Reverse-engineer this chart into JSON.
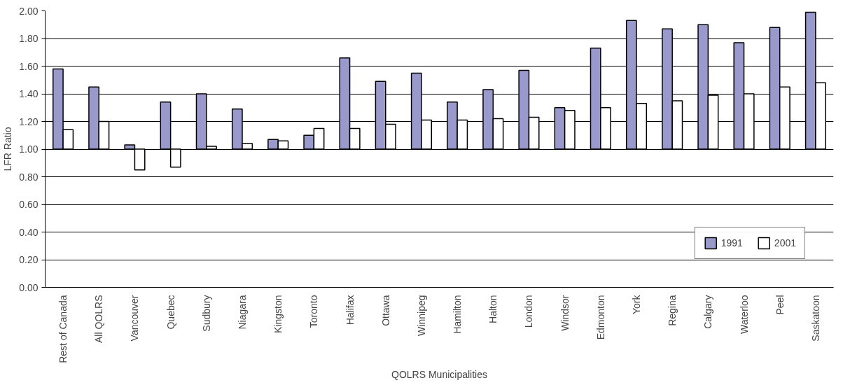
{
  "chart_data": {
    "type": "bar",
    "xlabel": "QOLRS Municipalities",
    "ylabel": "LFR Ratio",
    "categories": [
      "Rest of Canada",
      "All QOLRS",
      "Vancouver",
      "Quebec",
      "Sudbury",
      "Niagara",
      "Kingston",
      "Toronto",
      "Halifax",
      "Ottawa",
      "Winnipeg",
      "Hamilton",
      "Halton",
      "London",
      "Windsor",
      "Edmonton",
      "York",
      "Regina",
      "Calgary",
      "Waterloo",
      "Peel",
      "Saskatoon"
    ],
    "series": [
      {
        "name": "1991",
        "color": "#9999cc",
        "base": [
          1,
          1,
          1,
          1,
          1,
          1,
          1,
          1,
          1,
          1,
          1,
          1,
          1,
          1,
          1,
          1,
          1,
          1,
          1,
          1,
          1,
          1
        ],
        "values": [
          0.58,
          0.45,
          0.03,
          0.34,
          0.4,
          0.29,
          0.07,
          0.1,
          0.66,
          0.49,
          0.55,
          0.34,
          0.43,
          0.57,
          0.3,
          0.73,
          0.93,
          0.87,
          0.9,
          0.77,
          0.88,
          0.99
        ]
      },
      {
        "name": "2001",
        "color": "#ffffff",
        "base": [
          1,
          1,
          1,
          1,
          1,
          1,
          1,
          1,
          1,
          1,
          1,
          1,
          1,
          1,
          1,
          1,
          1,
          1,
          1,
          1,
          1,
          1
        ],
        "values": [
          0.14,
          0.2,
          -0.15,
          -0.13,
          0.02,
          0.04,
          0.06,
          0.15,
          0.15,
          0.18,
          0.21,
          0.21,
          0.22,
          0.23,
          0.28,
          0.3,
          0.33,
          0.35,
          0.39,
          0.4,
          0.45,
          0.48
        ]
      }
    ],
    "ylim": [
      0,
      2
    ],
    "yticks": [
      {
        "value": 0,
        "label": "0.00"
      },
      {
        "value": 0.2,
        "label": "0.20"
      },
      {
        "value": 0.4,
        "label": "0.40"
      },
      {
        "value": 0.6,
        "label": "0.60"
      },
      {
        "value": 0.8,
        "label": "0.80"
      },
      {
        "value": 1,
        "label": "1.00"
      },
      {
        "value": 1.2,
        "label": "1.20"
      },
      {
        "value": 1.4,
        "label": "1.40"
      },
      {
        "value": 1.6,
        "label": "1.60"
      },
      {
        "value": 1.8,
        "label": "1.80"
      },
      {
        "value": 2,
        "label": "2.00"
      }
    ],
    "grid": "y",
    "legend": "bottom right"
  }
}
